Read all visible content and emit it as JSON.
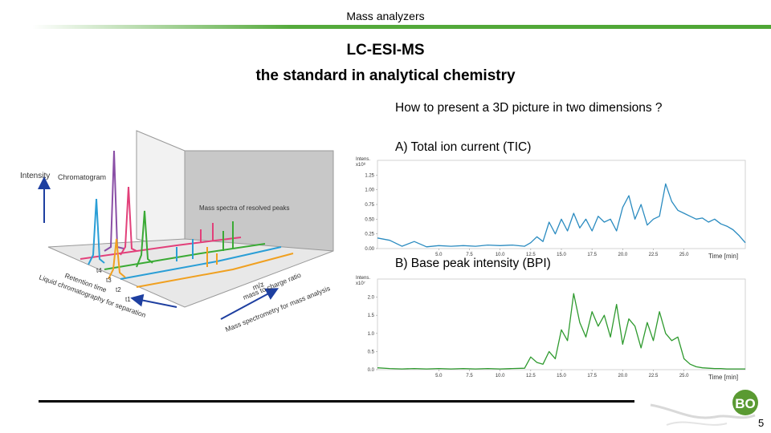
{
  "header": {
    "title": "Mass analyzers"
  },
  "title": {
    "line1": "LC-ESI-MS",
    "line2": "the standard in analytical chemistry"
  },
  "body": {
    "question": "How to present a 3D picture in two dimensions ?",
    "label_a": "A) Total ion current (TIC)",
    "label_b": "B) Base peak intensity (BPI)"
  },
  "figure3d": {
    "intensity": "Intensity",
    "chromatogram": "Chromatogram",
    "mass_spectra": "Mass spectra of resolved peaks",
    "mz": "m/z",
    "mass_to_charge": "mass to charge ratio",
    "mass_spectrometry": "Mass spectrometry for mass analysis",
    "retention_time": "Retention time",
    "liquid_chromatography": "Liquid chromatography for separation",
    "t1": "t1",
    "t2": "t2",
    "t3": "t3",
    "t4": "t4",
    "colors": {
      "purple": "#8a4fa6",
      "red": "#e2407a",
      "green": "#3aaa35",
      "blue": "#2a9ed6",
      "orange": "#f0a020"
    }
  },
  "chart_data": [
    {
      "type": "line",
      "title": "TIC",
      "ylabel_line1": "Intens.",
      "ylabel_line2": "x10⁸",
      "xlabel": "Time [min]",
      "xlim": [
        0,
        30
      ],
      "ylim": [
        0,
        1.5
      ],
      "yticks": [
        "0.00",
        "0.25",
        "0.50",
        "0.75",
        "1.00",
        "1.25"
      ],
      "xticks": [
        "5.0",
        "7.5",
        "10.0",
        "12.5",
        "15.0",
        "17.5",
        "20.0",
        "22.5",
        "25.0"
      ],
      "color": "#2a8bc0",
      "series": [
        {
          "name": "TIC",
          "x": [
            0,
            1,
            2,
            3,
            4,
            5,
            6,
            7,
            8,
            9,
            10,
            11,
            12,
            12.5,
            13,
            13.5,
            14,
            14.5,
            15,
            15.5,
            16,
            16.5,
            17,
            17.5,
            18,
            18.5,
            19,
            19.5,
            20,
            20.5,
            21,
            21.5,
            22,
            22.5,
            23,
            23.5,
            24,
            24.5,
            25,
            25.5,
            26,
            26.5,
            27,
            27.5,
            28,
            28.5,
            29,
            29.5,
            30
          ],
          "y": [
            0.18,
            0.14,
            0.04,
            0.12,
            0.03,
            0.05,
            0.04,
            0.05,
            0.04,
            0.06,
            0.05,
            0.06,
            0.04,
            0.1,
            0.2,
            0.12,
            0.45,
            0.25,
            0.5,
            0.3,
            0.6,
            0.35,
            0.5,
            0.3,
            0.55,
            0.45,
            0.5,
            0.3,
            0.7,
            0.9,
            0.5,
            0.75,
            0.4,
            0.5,
            0.55,
            1.1,
            0.8,
            0.65,
            0.6,
            0.55,
            0.5,
            0.52,
            0.45,
            0.5,
            0.42,
            0.38,
            0.32,
            0.22,
            0.1
          ]
        }
      ]
    },
    {
      "type": "line",
      "title": "BPI",
      "ylabel_line1": "Intens.",
      "ylabel_line2": "x10⁷",
      "xlabel": "Time [min]",
      "xlim": [
        0,
        30
      ],
      "ylim": [
        0,
        2.5
      ],
      "yticks": [
        "0.0",
        "0.5",
        "1.0",
        "1.5",
        "2.0"
      ],
      "xticks": [
        "5.0",
        "7.5",
        "10.0",
        "12.5",
        "15.0",
        "17.5",
        "20.0",
        "22.5",
        "25.0"
      ],
      "color": "#2e9a2e",
      "series": [
        {
          "name": "BPI",
          "x": [
            0,
            1,
            2,
            3,
            4,
            5,
            6,
            7,
            8,
            9,
            10,
            11,
            12,
            12.5,
            13,
            13.5,
            14,
            14.5,
            15,
            15.5,
            16,
            16.5,
            17,
            17.5,
            18,
            18.5,
            19,
            19.5,
            20,
            20.5,
            21,
            21.5,
            22,
            22.5,
            23,
            23.5,
            24,
            24.5,
            25,
            25.5,
            26,
            26.5,
            27,
            27.5,
            28,
            28.5,
            29,
            29.5,
            30
          ],
          "y": [
            0.05,
            0.03,
            0.02,
            0.03,
            0.02,
            0.03,
            0.02,
            0.03,
            0.02,
            0.03,
            0.02,
            0.03,
            0.04,
            0.35,
            0.2,
            0.15,
            0.5,
            0.3,
            1.1,
            0.8,
            2.1,
            1.3,
            0.9,
            1.6,
            1.2,
            1.5,
            0.9,
            1.8,
            0.7,
            1.4,
            1.2,
            0.6,
            1.3,
            0.8,
            1.6,
            1.0,
            0.8,
            0.9,
            0.3,
            0.15,
            0.08,
            0.05,
            0.04,
            0.03,
            0.03,
            0.02,
            0.02,
            0.02,
            0.02
          ]
        }
      ]
    }
  ],
  "footer": {
    "logo_text": "BO",
    "page_number": "5"
  }
}
